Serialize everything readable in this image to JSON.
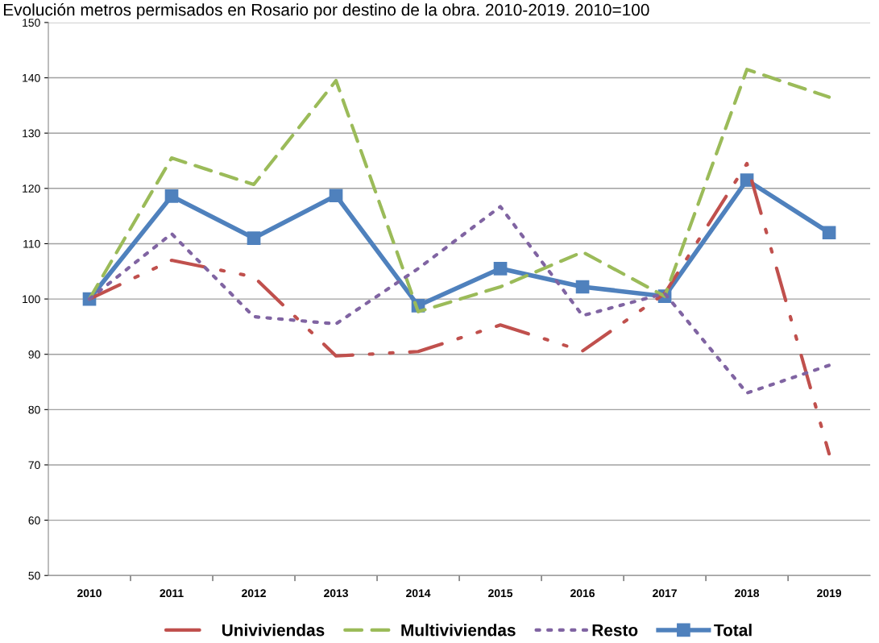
{
  "chart_data": {
    "type": "line",
    "title": "Evolución metros permisados en Rosario por destino de la obra. 2010-2019. 2010=100",
    "categories": [
      "2010",
      "2011",
      "2012",
      "2013",
      "2014",
      "2015",
      "2016",
      "2017",
      "2018",
      "2019"
    ],
    "series": [
      {
        "name": "Univiviendas",
        "color": "#c0504d",
        "line_style": "dashdot",
        "marker": "none",
        "values": [
          100,
          107,
          104,
          89.7,
          90.5,
          95.3,
          90.6,
          101,
          124.5,
          72
        ]
      },
      {
        "name": "Multiviviendas",
        "color": "#9bbb59",
        "line_style": "dashed",
        "marker": "none",
        "values": [
          100,
          125.5,
          120.7,
          139.5,
          97.7,
          102.2,
          108.5,
          100.5,
          141.5,
          136.5
        ]
      },
      {
        "name": "Resto",
        "color": "#8064a2",
        "line_style": "dotted",
        "marker": "none",
        "values": [
          100,
          111.8,
          96.8,
          95.5,
          105.5,
          116.7,
          97,
          101,
          83,
          88
        ]
      },
      {
        "name": "Total",
        "color": "#4f81bd",
        "line_style": "solid",
        "marker": "square",
        "values": [
          100,
          118.6,
          111,
          118.7,
          98.8,
          105.5,
          102.2,
          100.5,
          121.5,
          112
        ]
      }
    ],
    "ylim": [
      50,
      150
    ],
    "yticks": [
      50,
      60,
      70,
      80,
      90,
      100,
      110,
      120,
      130,
      140,
      150
    ],
    "grid": "y",
    "legend": "bottom"
  }
}
